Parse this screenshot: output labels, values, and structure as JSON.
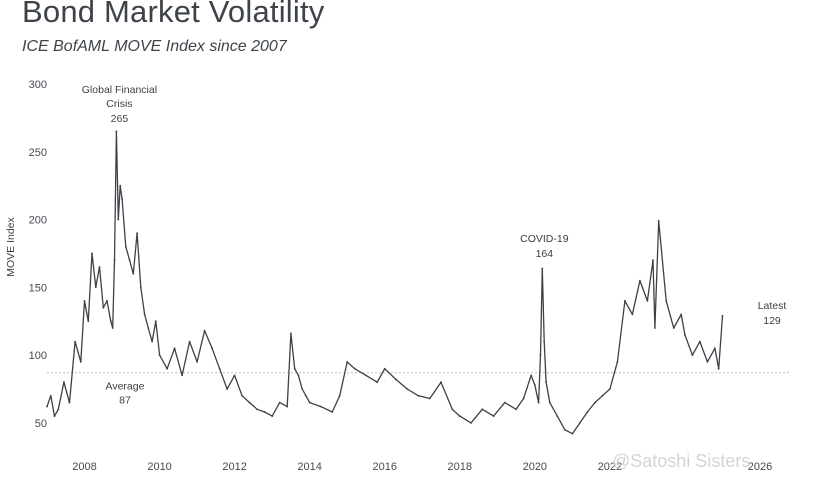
{
  "header": {
    "title": "Bond Market Volatility",
    "subtitle": "ICE BofAML MOVE Index since 2007"
  },
  "watermark": "@Satoshi Sisters",
  "colors": {
    "line": "#3b4147",
    "reference": "#b7bcc1",
    "text": "#3a3f44"
  },
  "chart_data": {
    "type": "line",
    "title": "Bond Market Volatility",
    "subtitle": "ICE BofAML MOVE Index since 2007",
    "xlabel": "",
    "ylabel": "MOVE Index",
    "xlim": [
      2007.0,
      2026.8
    ],
    "ylim": [
      30,
      300
    ],
    "grid": false,
    "y_ticks": [
      50,
      100,
      150,
      200,
      250,
      300
    ],
    "x_ticks": [
      {
        "value": 2008,
        "label": "2008"
      },
      {
        "value": 2010,
        "label": "2010"
      },
      {
        "value": 2012,
        "label": "2012"
      },
      {
        "value": 2014,
        "label": "2014"
      },
      {
        "value": 2016,
        "label": "2016"
      },
      {
        "value": 2018,
        "label": "2018"
      },
      {
        "value": 2020,
        "label": "2020"
      },
      {
        "value": 2022,
        "label": "2022"
      },
      {
        "value": 2026,
        "label": "2026"
      }
    ],
    "reference_line": {
      "value": 87,
      "label": "Average",
      "label_value": "87"
    },
    "annotations": [
      {
        "label": "Global Financial",
        "label2": "Crisis",
        "value": "265",
        "x": 2008.85,
        "y": 265
      },
      {
        "label": "COVID-19",
        "label2": "",
        "value": "164",
        "x": 2020.2,
        "y": 164
      },
      {
        "label": "Latest",
        "label2": "",
        "value": "129",
        "x": 2025.0,
        "y": 129
      }
    ],
    "series": [
      {
        "name": "MOVE Index",
        "x": [
          2007.0,
          2007.1,
          2007.2,
          2007.3,
          2007.45,
          2007.6,
          2007.75,
          2007.9,
          2008.0,
          2008.1,
          2008.2,
          2008.3,
          2008.4,
          2008.5,
          2008.6,
          2008.7,
          2008.75,
          2008.8,
          2008.85,
          2008.9,
          2008.95,
          2009.0,
          2009.1,
          2009.2,
          2009.3,
          2009.4,
          2009.5,
          2009.6,
          2009.7,
          2009.8,
          2009.9,
          2010.0,
          2010.2,
          2010.4,
          2010.6,
          2010.8,
          2011.0,
          2011.2,
          2011.4,
          2011.6,
          2011.8,
          2012.0,
          2012.2,
          2012.4,
          2012.6,
          2012.8,
          2013.0,
          2013.2,
          2013.4,
          2013.5,
          2013.6,
          2013.7,
          2013.8,
          2013.9,
          2014.0,
          2014.3,
          2014.6,
          2014.8,
          2015.0,
          2015.2,
          2015.5,
          2015.8,
          2016.0,
          2016.3,
          2016.6,
          2016.9,
          2017.2,
          2017.5,
          2017.8,
          2018.0,
          2018.3,
          2018.6,
          2018.9,
          2019.2,
          2019.5,
          2019.7,
          2019.9,
          2020.0,
          2020.1,
          2020.15,
          2020.2,
          2020.25,
          2020.3,
          2020.4,
          2020.6,
          2020.8,
          2021.0,
          2021.2,
          2021.4,
          2021.6,
          2021.8,
          2022.0,
          2022.2,
          2022.4,
          2022.6,
          2022.8,
          2023.0,
          2023.15,
          2023.2,
          2023.3,
          2023.5,
          2023.7,
          2023.9,
          2024.0,
          2024.2,
          2024.4,
          2024.6,
          2024.8,
          2024.9,
          2025.0
        ],
        "values": [
          62,
          70,
          55,
          60,
          80,
          65,
          110,
          95,
          140,
          125,
          175,
          150,
          165,
          135,
          140,
          125,
          120,
          170,
          265,
          200,
          225,
          215,
          180,
          170,
          160,
          190,
          150,
          130,
          120,
          110,
          125,
          100,
          90,
          105,
          85,
          110,
          95,
          118,
          105,
          90,
          75,
          85,
          70,
          65,
          60,
          58,
          55,
          65,
          62,
          116,
          90,
          85,
          75,
          70,
          65,
          62,
          58,
          70,
          95,
          90,
          85,
          80,
          90,
          82,
          75,
          70,
          68,
          80,
          60,
          55,
          50,
          60,
          55,
          65,
          60,
          68,
          85,
          78,
          65,
          100,
          164,
          110,
          80,
          65,
          55,
          45,
          42,
          50,
          58,
          65,
          70,
          75,
          95,
          140,
          130,
          155,
          140,
          170,
          120,
          199,
          140,
          120,
          130,
          115,
          100,
          110,
          95,
          105,
          90,
          129
        ]
      }
    ]
  }
}
